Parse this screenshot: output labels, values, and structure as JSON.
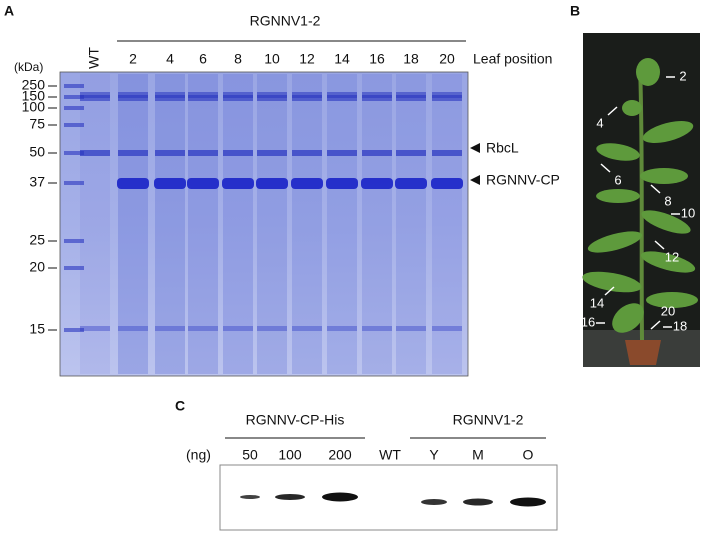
{
  "panel_a": {
    "label": "A",
    "group_label": "RGNNV1-2",
    "unit": "(kDa)",
    "lanes": [
      "WT",
      "2",
      "4",
      "6",
      "8",
      "10",
      "12",
      "14",
      "16",
      "18",
      "20"
    ],
    "lane_axis_label": "Leaf position",
    "markers": [
      "250",
      "150",
      "100",
      "75",
      "50",
      "37",
      "25",
      "20",
      "15"
    ],
    "bands": [
      "RbcL",
      "RGNNV-CP"
    ]
  },
  "panel_b": {
    "label": "B",
    "leaf_labels": [
      "2",
      "4",
      "6",
      "8",
      "10",
      "12",
      "14",
      "16",
      "18",
      "20"
    ]
  },
  "panel_c": {
    "label": "C",
    "groups": [
      "RGNNV-CP-His",
      "RGNNV1-2"
    ],
    "unit": "(ng)",
    "lanes": [
      "50",
      "100",
      "200",
      "WT",
      "Y",
      "M",
      "O"
    ]
  }
}
